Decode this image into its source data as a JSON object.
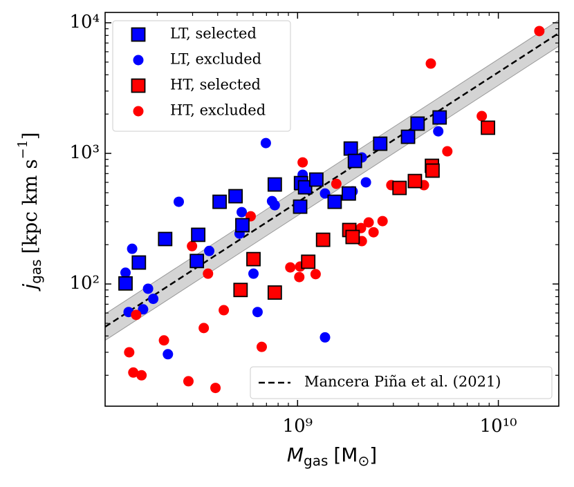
{
  "chart_data": {
    "type": "scatter",
    "xlabel": {
      "main": "M",
      "sub": "gas",
      "unit": "[M",
      "unit_sub": "⊙",
      "close": "]"
    },
    "ylabel": {
      "main": "j",
      "sub": "gas",
      "unit": "[kpc km s",
      "unit_sup": "−1",
      "close": "]"
    },
    "xlog": true,
    "ylog": true,
    "xlim": [
      110000000.0,
      20000000000.0
    ],
    "ylim": [
      11.6,
      12000
    ],
    "xticks": [
      {
        "value": 1000000000.0,
        "label": "10⁹"
      },
      {
        "value": 10000000000.0,
        "label": "10¹⁰"
      }
    ],
    "yticks": [
      {
        "value": 100,
        "label": "10²"
      },
      {
        "value": 1000,
        "label": "10³"
      },
      {
        "value": 10000,
        "label": "10⁴"
      }
    ],
    "legend": "upper left",
    "series": [
      {
        "name": "LT, selected",
        "color": "#0000ff",
        "marker": "square",
        "x": [
          139000000.0,
          162000000.0,
          219000000.0,
          315000000.0,
          320000000.0,
          409000000.0,
          491000000.0,
          531000000.0,
          770000000.0,
          1040000000.0,
          1030000000.0,
          1090000000.0,
          1240000000.0,
          1530000000.0,
          1800000000.0,
          1840000000.0,
          1930000000.0,
          2580000000.0,
          3550000000.0,
          3960000000.0,
          5100000000.0
        ],
        "y": [
          101,
          146,
          221,
          150,
          238,
          426,
          470,
          282,
          578,
          592,
          391,
          550,
          630,
          426,
          493,
          1089,
          875,
          1186,
          1340,
          1690,
          1884
        ]
      },
      {
        "name": "LT, excluded",
        "color": "#0000ff",
        "marker": "circle",
        "x": [
          139000000.0,
          144000000.0,
          150000000.0,
          170000000.0,
          180000000.0,
          191000000.0,
          226000000.0,
          256000000.0,
          310000000.0,
          363000000.0,
          527000000.0,
          514000000.0,
          603000000.0,
          695000000.0,
          746000000.0,
          770000000.0,
          1060000000.0,
          1080000000.0,
          1370000000.0,
          1370000000.0,
          1880000000.0,
          2090000000.0,
          2190000000.0,
          5020000000.0,
          632000000.0
        ],
        "y": [
          122,
          61,
          186,
          64,
          92,
          77,
          29,
          426,
          153,
          179,
          355,
          243,
          120,
          1200,
          431,
          401,
          686,
          585,
          493,
          39,
          512,
          930,
          600,
          1476,
          61
        ]
      },
      {
        "name": "HT, selected",
        "color": "#ff0000",
        "marker": "square",
        "x": [
          520000000.0,
          603000000.0,
          770000000.0,
          1130000000.0,
          1340000000.0,
          1810000000.0,
          1880000000.0,
          3220000000.0,
          3840000000.0,
          4670000000.0,
          4700000000.0,
          8880000000.0
        ],
        "y": [
          90,
          155,
          86,
          148,
          218,
          259,
          229,
          544,
          614,
          803,
          738,
          1572
        ]
      },
      {
        "name": "HT, excluded",
        "color": "#ff0000",
        "marker": "circle",
        "x": [
          145000000.0,
          152000000.0,
          157000000.0,
          167000000.0,
          216000000.0,
          286000000.0,
          298000000.0,
          341000000.0,
          358000000.0,
          390000000.0,
          429000000.0,
          584000000.0,
          663000000.0,
          920000000.0,
          1020000000.0,
          1030000000.0,
          1060000000.0,
          1230000000.0,
          1560000000.0,
          2070000000.0,
          2090000000.0,
          2260000000.0,
          2390000000.0,
          2650000000.0,
          2930000000.0,
          4260000000.0,
          4610000000.0,
          5570000000.0,
          8270000000.0,
          16000000000.0
        ],
        "y": [
          30,
          21,
          58,
          20,
          37,
          18,
          195,
          46,
          120,
          16,
          63,
          330,
          33,
          134,
          113,
          136,
          853,
          119,
          585,
          268,
          213,
          296,
          249,
          303,
          571,
          571,
          4870,
          1037,
          1930,
          8640
        ]
      }
    ],
    "fit": {
      "name": "Mancera Piña et al. (2021)",
      "color": "#000000",
      "x": [
        110000000.0,
        20000000000.0
      ],
      "y": [
        47,
        8330
      ],
      "band_lower": [
        37,
        6620
      ],
      "band_upper": [
        59,
        10490
      ]
    }
  }
}
